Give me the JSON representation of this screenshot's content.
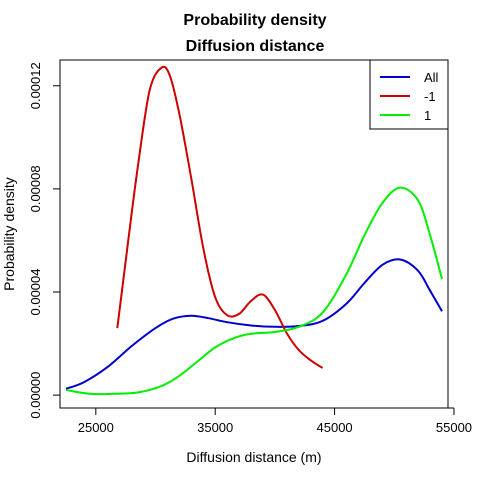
{
  "chart_data": {
    "type": "line",
    "title": "Probability density",
    "subtitle": "Diffusion distance",
    "xlabel": "Diffusion distance (m)",
    "ylabel": "Probability density",
    "xlim": [
      22000,
      54500
    ],
    "ylim": [
      -5e-06,
      0.00013
    ],
    "xticks": [
      25000,
      35000,
      45000,
      55000
    ],
    "yticks": [
      0.0,
      4e-05,
      8e-05,
      0.00012
    ],
    "xtick_labels": [
      "25000",
      "35000",
      "45000",
      "55000"
    ],
    "ytick_labels": [
      "0.00000",
      "0.00004",
      "0.00008",
      "0.00012"
    ],
    "legend_position": "top-right",
    "grid": false,
    "series": [
      {
        "name": "All",
        "color": "#0000cc",
        "x": [
          22500,
          24000,
          26000,
          28000,
          30000,
          31500,
          33000,
          34500,
          36000,
          38000,
          40000,
          42000,
          44000,
          46000,
          47500,
          49000,
          50500,
          52000,
          53000,
          54000
        ],
        "y": [
          2.5e-06,
          5e-06,
          1.1e-05,
          1.9e-05,
          2.6e-05,
          2.97e-05,
          3.08e-05,
          2.98e-05,
          2.83e-05,
          2.7e-05,
          2.65e-05,
          2.68e-05,
          2.88e-05,
          3.55e-05,
          4.35e-05,
          5.05e-05,
          5.26e-05,
          4.82e-05,
          4.05e-05,
          3.25e-05
        ]
      },
      {
        "name": "-1",
        "color": "#cc0000",
        "x": [
          26800,
          27500,
          28500,
          29500,
          30500,
          31200,
          32000,
          33000,
          34000,
          35000,
          36000,
          37000,
          38000,
          39000,
          40000,
          41000,
          42000,
          43000,
          44000
        ],
        "y": [
          2.6e-05,
          5.2e-05,
          8.8e-05,
          0.000118,
          0.000127,
          0.000124,
          0.000109,
          8.4e-05,
          5.7e-05,
          3.8e-05,
          3.1e-05,
          3.15e-05,
          3.65e-05,
          3.9e-05,
          3.3e-05,
          2.4e-05,
          1.75e-05,
          1.35e-05,
          1.05e-05
        ]
      },
      {
        "name": "1",
        "color": "#00ee00",
        "x": [
          22500,
          24500,
          26500,
          28500,
          30500,
          32000,
          33500,
          35000,
          36500,
          38000,
          40000,
          42000,
          44000,
          46000,
          47500,
          49000,
          50500,
          52000,
          53000,
          54000
        ],
        "y": [
          2e-06,
          5e-07,
          5e-07,
          1e-06,
          3.5e-06,
          7.5e-06,
          1.3e-05,
          1.85e-05,
          2.2e-05,
          2.38e-05,
          2.45e-05,
          2.65e-05,
          3.2e-05,
          4.7e-05,
          6.2e-05,
          7.45e-05,
          8.05e-05,
          7.55e-05,
          6.2e-05,
          4.5e-05
        ]
      }
    ]
  }
}
